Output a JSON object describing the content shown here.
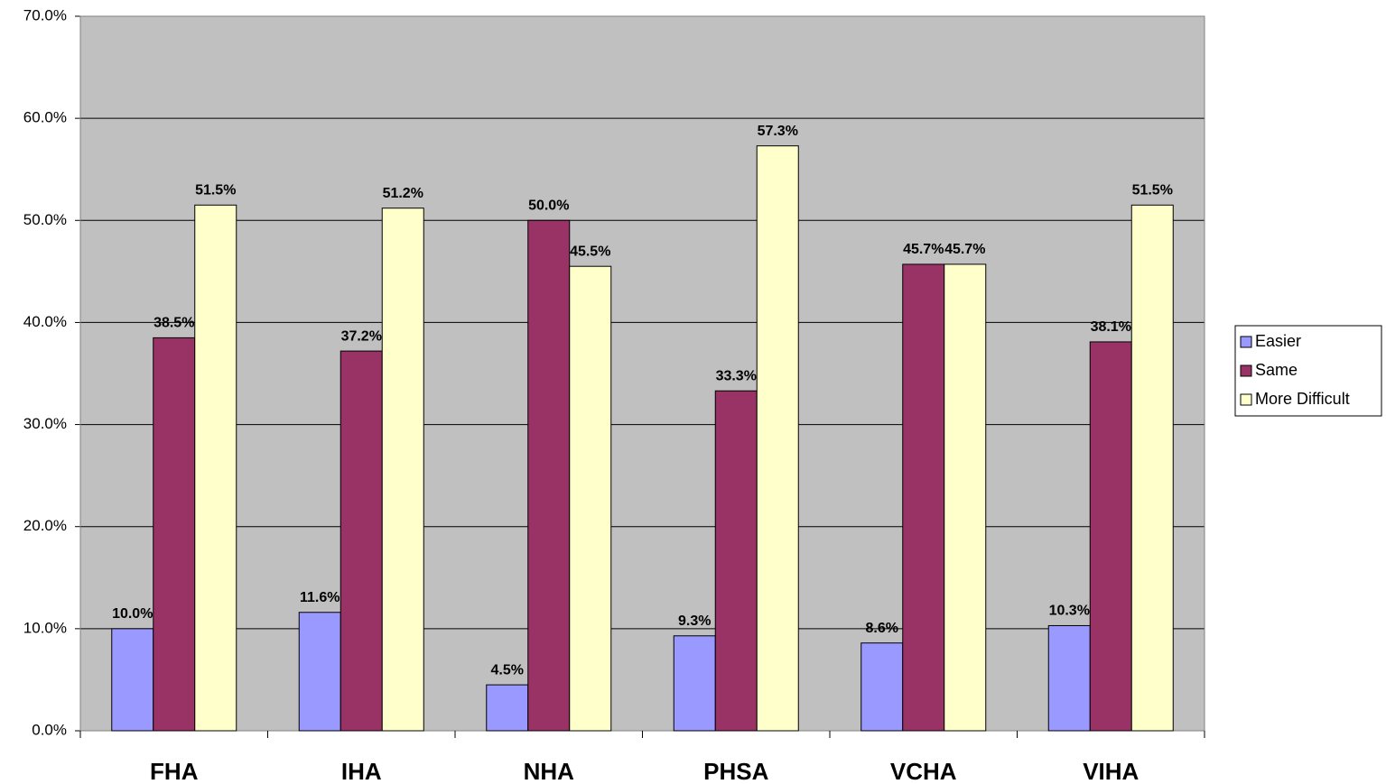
{
  "chart_data": {
    "type": "bar",
    "categories": [
      "FHA",
      "IHA",
      "NHA",
      "PHSA",
      "VCHA",
      "VIHA"
    ],
    "series": [
      {
        "name": "Easier",
        "color": "#9999ff",
        "values": [
          10.0,
          11.6,
          4.5,
          9.3,
          8.6,
          10.3
        ],
        "value_labels": [
          "10.0%",
          "11.6%",
          "4.5%",
          "9.3%",
          "8.6%",
          "10.3%"
        ]
      },
      {
        "name": "Same",
        "color": "#993366",
        "values": [
          38.5,
          37.2,
          50.0,
          33.3,
          45.7,
          38.1
        ],
        "value_labels": [
          "38.5%",
          "37.2%",
          "50.0%",
          "33.3%",
          "45.7%",
          "38.1%"
        ]
      },
      {
        "name": "More Difficult",
        "color": "#ffffcc",
        "values": [
          51.5,
          51.2,
          45.5,
          57.3,
          45.7,
          51.5
        ],
        "value_labels": [
          "51.5%",
          "51.2%",
          "45.5%",
          "57.3%",
          "45.7%",
          "51.5%"
        ]
      }
    ],
    "ylim": [
      0,
      70
    ],
    "yticks": [
      {
        "value": 0,
        "label": "0.0%"
      },
      {
        "value": 10,
        "label": "10.0%"
      },
      {
        "value": 20,
        "label": "20.0%"
      },
      {
        "value": 30,
        "label": "30.0%"
      },
      {
        "value": 40,
        "label": "40.0%"
      },
      {
        "value": 50,
        "label": "50.0%"
      },
      {
        "value": 60,
        "label": "60.0%"
      },
      {
        "value": 70,
        "label": "70.0%"
      }
    ],
    "grid": true,
    "legend": "right",
    "plot_background": "#c0c0c0"
  }
}
